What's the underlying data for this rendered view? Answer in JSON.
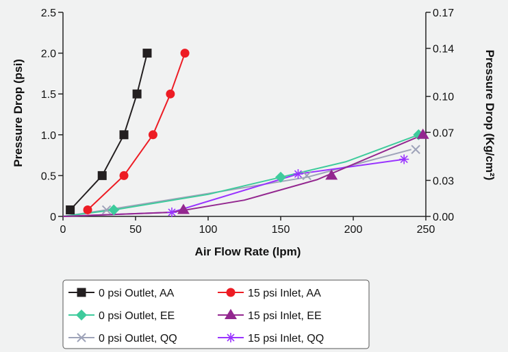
{
  "chart_data": {
    "type": "line",
    "xlabel": "Air Flow Rate (lpm)",
    "ylabel": "Pressure Drop  (psi)",
    "y2label": "Pressure Drop (Kg/cm²)",
    "xlim": [
      0,
      250
    ],
    "ylim": [
      0,
      2.5
    ],
    "y2lim": [
      0,
      0.17
    ],
    "x_ticks": [
      0,
      50,
      100,
      150,
      200,
      250
    ],
    "x_tick_labels": [
      "0",
      "50",
      "100",
      "150",
      "200",
      "250"
    ],
    "y_ticks": [
      0,
      0.5,
      1.0,
      1.5,
      2.0,
      2.5
    ],
    "y_tick_labels": [
      "0",
      "0.5",
      "1.0",
      "1.5",
      "2.0",
      "2.5"
    ],
    "y2_ticks": [
      0,
      0.03,
      0.07,
      0.1,
      0.14,
      0.17
    ],
    "y2_tick_labels": [
      "0.00",
      "0.03",
      "0.07",
      "0.10",
      "0.14",
      "0.17"
    ],
    "grid": false,
    "legend_position": "bottom",
    "series": [
      {
        "name": "0 psi Outlet, AA",
        "color": "#231f20",
        "marker": "square",
        "line": [
          [
            5,
            0.08
          ],
          [
            27,
            0.5
          ],
          [
            42,
            1.0
          ],
          [
            51,
            1.5
          ],
          [
            58,
            2.0
          ]
        ],
        "markers": [
          [
            5,
            0.08
          ],
          [
            27,
            0.5
          ],
          [
            42,
            1.0
          ],
          [
            51,
            1.5
          ],
          [
            58,
            2.0
          ]
        ]
      },
      {
        "name": "15 psi Inlet, AA",
        "color": "#ed1c24",
        "marker": "circle",
        "line": [
          [
            17,
            0.08
          ],
          [
            42,
            0.5
          ],
          [
            62,
            1.0
          ],
          [
            74,
            1.5
          ],
          [
            84,
            2.0
          ]
        ],
        "markers": [
          [
            17,
            0.08
          ],
          [
            42,
            0.5
          ],
          [
            62,
            1.0
          ],
          [
            74,
            1.5
          ],
          [
            84,
            2.0
          ]
        ]
      },
      {
        "name": "0 psi Outlet, EE",
        "color": "#3ecb9c",
        "marker": "diamond",
        "line": [
          [
            0,
            0
          ],
          [
            35,
            0.08
          ],
          [
            100,
            0.27
          ],
          [
            150,
            0.48
          ],
          [
            195,
            0.67
          ],
          [
            245,
            1.0
          ]
        ],
        "markers": [
          [
            35,
            0.08
          ],
          [
            150,
            0.48
          ],
          [
            245,
            1.0
          ]
        ]
      },
      {
        "name": "15 psi Inlet, EE",
        "color": "#93278f",
        "marker": "triangle",
        "line": [
          [
            0,
            0
          ],
          [
            75,
            0.05
          ],
          [
            125,
            0.2
          ],
          [
            175,
            0.45
          ],
          [
            248,
            1.0
          ]
        ],
        "markers": [
          [
            83,
            0.08
          ],
          [
            185,
            0.5
          ],
          [
            248,
            1.0
          ]
        ]
      },
      {
        "name": "0 psi Outlet, QQ",
        "color": "#9ea3b9",
        "marker": "x",
        "line": [
          [
            0,
            0
          ],
          [
            30,
            0.08
          ],
          [
            100,
            0.28
          ],
          [
            168,
            0.48
          ],
          [
            240,
            0.82
          ]
        ],
        "markers": [
          [
            30,
            0.08
          ],
          [
            168,
            0.5
          ],
          [
            243,
            0.82
          ]
        ]
      },
      {
        "name": "15 psi Inlet, QQ",
        "color": "#9933ff",
        "marker": "asterisk",
        "line": [
          [
            0,
            0
          ],
          [
            75,
            0.05
          ],
          [
            162,
            0.52
          ],
          [
            235,
            0.7
          ]
        ],
        "markers": [
          [
            75,
            0.05
          ],
          [
            162,
            0.52
          ],
          [
            235,
            0.7
          ]
        ]
      }
    ]
  }
}
